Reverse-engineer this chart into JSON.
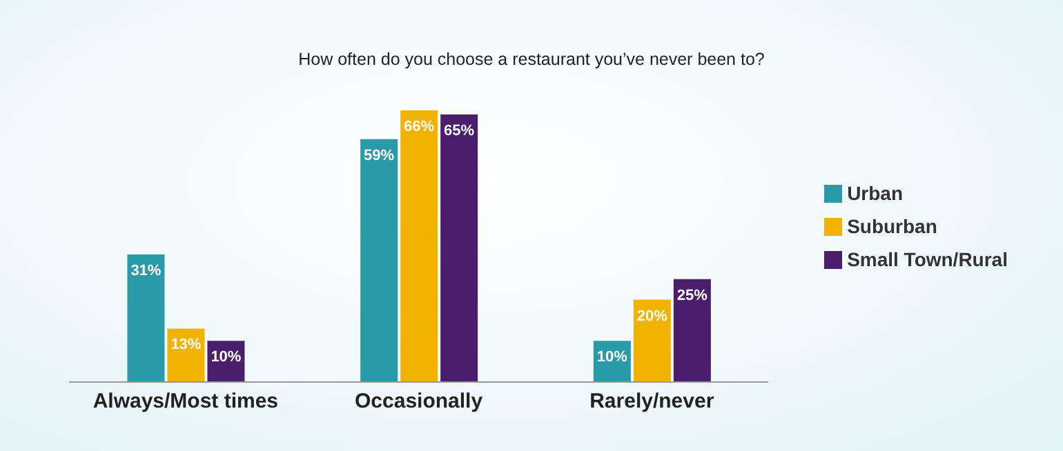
{
  "chart_data": {
    "type": "bar",
    "title": "How often do you choose a restaurant you’ve never been to?",
    "categories": [
      "Always/Most times",
      "Occasionally",
      "Rarely/never"
    ],
    "series": [
      {
        "name": "Urban",
        "color": "#2a9aa8",
        "values": [
          31,
          59,
          10
        ],
        "value_labels": [
          "31%",
          "59%",
          "10%"
        ]
      },
      {
        "name": "Suburban",
        "color": "#f2b200",
        "values": [
          13,
          66,
          20
        ],
        "value_labels": [
          "13%",
          "66%",
          "20%"
        ]
      },
      {
        "name": "Small Town/Rural",
        "color": "#4b1e6b",
        "values": [
          10,
          65,
          25
        ],
        "value_labels": [
          "10%",
          "65%",
          "25%"
        ]
      }
    ],
    "legend": "right",
    "grid": false
  }
}
